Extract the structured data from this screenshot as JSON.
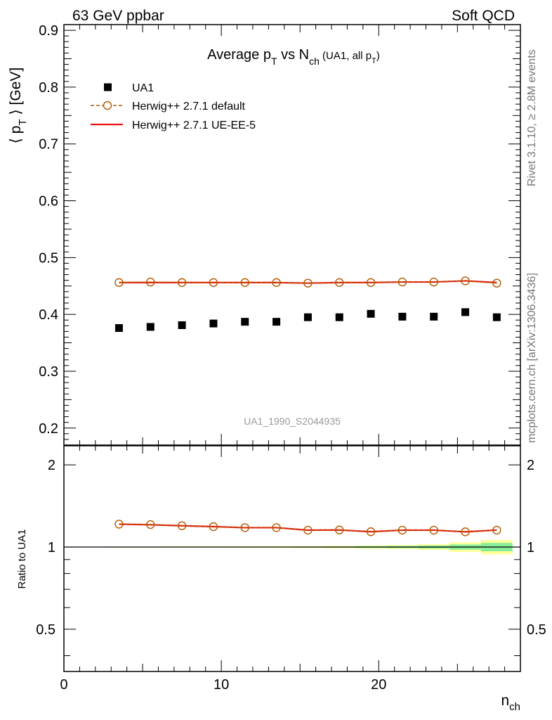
{
  "header": {
    "left_label": "63 GeV ppbar",
    "right_label": "Soft QCD"
  },
  "side_labels": {
    "rivet": "Rivet 3.1.10, ≥ 2.8M events",
    "mcplots": "mcplots.cern.ch [arXiv:1306.3436]"
  },
  "watermark": "UA1_1990_S2044935",
  "chart_data": [
    {
      "type": "scatter",
      "panel": "main",
      "title": {
        "main": "Average p",
        "main_sub": "T",
        "mid": " vs N",
        "mid_sub": "ch",
        "small": " (UA1, all p",
        "small_sub": "T",
        "small_end": ")"
      },
      "ylabel": {
        "open": "⟨ p",
        "sub": "T",
        "close": " ⟩ [GeV]"
      },
      "xlim": [
        0,
        29
      ],
      "ylim": [
        0.17,
        0.91
      ],
      "y_ticks": [
        0.2,
        0.3,
        0.4,
        0.5,
        0.6,
        0.7,
        0.8,
        0.9
      ],
      "y_tick_labels": [
        "0.2",
        "0.3",
        "0.4",
        "0.5",
        "0.6",
        "0.7",
        "0.8",
        "0.9"
      ],
      "legend": {
        "placement": "top-left",
        "entries": [
          "UA1",
          "Herwig++ 2.7.1 default",
          "Herwig++ 2.7.1 UE-EE-5"
        ]
      },
      "x": [
        3.5,
        5.5,
        7.5,
        9.5,
        11.5,
        13.5,
        15.5,
        17.5,
        19.5,
        21.5,
        23.5,
        25.5,
        27.5
      ],
      "series": [
        {
          "name": "UA1",
          "marker": "square",
          "color": "#000000",
          "values": [
            0.376,
            0.378,
            0.381,
            0.384,
            0.387,
            0.387,
            0.395,
            0.395,
            0.401,
            0.396,
            0.396,
            0.404,
            0.395
          ]
        },
        {
          "name": "Herwig++ 2.7.1 default",
          "marker": "open-circle",
          "line": "dashed",
          "color": "#b35900",
          "values": [
            0.456,
            0.457,
            0.456,
            0.456,
            0.456,
            0.456,
            0.455,
            0.456,
            0.456,
            0.457,
            0.457,
            0.459,
            0.455
          ]
        },
        {
          "name": "Herwig++ 2.7.1 UE-EE-5",
          "marker": "none",
          "line": "solid",
          "color": "#ee1111",
          "values": [
            0.456,
            0.456,
            0.456,
            0.456,
            0.456,
            0.456,
            0.455,
            0.456,
            0.456,
            0.457,
            0.457,
            0.459,
            0.456
          ]
        }
      ]
    },
    {
      "type": "line",
      "panel": "ratio",
      "ylabel": "Ratio to UA1",
      "xlabel": {
        "base": "n",
        "sub": "ch"
      },
      "xlim": [
        0,
        29
      ],
      "ylim": [
        0.35,
        2.35
      ],
      "x_ticks": [
        0,
        10,
        20
      ],
      "x_tick_labels": [
        "0",
        "10",
        "20"
      ],
      "y_ticks": [
        0.5,
        1,
        2
      ],
      "y_tick_labels": [
        "0.5",
        "1",
        "2"
      ],
      "x": [
        3.5,
        5.5,
        7.5,
        9.5,
        11.5,
        13.5,
        15.5,
        17.5,
        19.5,
        21.5,
        23.5,
        25.5,
        27.5
      ],
      "reference": 1,
      "uncertainty_bands": [
        {
          "name": "outer",
          "color": "#ffff99",
          "x_edges": [
            2.5,
            4.5,
            6.5,
            8.5,
            10.5,
            12.5,
            14.5,
            16.5,
            18.5,
            20.5,
            22.5,
            24.5,
            26.5,
            28.5
          ],
          "half_width": [
            0.004,
            0.004,
            0.005,
            0.005,
            0.006,
            0.007,
            0.008,
            0.01,
            0.013,
            0.017,
            0.024,
            0.04,
            0.06
          ]
        },
        {
          "name": "inner",
          "color": "#88ee99",
          "x_edges": [
            2.5,
            4.5,
            6.5,
            8.5,
            10.5,
            12.5,
            14.5,
            16.5,
            18.5,
            20.5,
            22.5,
            24.5,
            26.5,
            28.5
          ],
          "half_width": [
            0.002,
            0.002,
            0.002,
            0.003,
            0.003,
            0.003,
            0.004,
            0.005,
            0.007,
            0.009,
            0.013,
            0.022,
            0.035
          ]
        }
      ],
      "series": [
        {
          "name": "Herwig++ 2.7.1 default",
          "marker": "open-circle",
          "line": "dashed",
          "color": "#b35900",
          "values": [
            1.213,
            1.209,
            1.197,
            1.188,
            1.178,
            1.178,
            1.153,
            1.155,
            1.138,
            1.153,
            1.153,
            1.137,
            1.153
          ]
        },
        {
          "name": "Herwig++ 2.7.1 UE-EE-5",
          "marker": "none",
          "line": "solid",
          "color": "#ee1111",
          "values": [
            1.213,
            1.207,
            1.197,
            1.188,
            1.178,
            1.178,
            1.153,
            1.155,
            1.138,
            1.153,
            1.153,
            1.137,
            1.154
          ]
        }
      ]
    }
  ]
}
